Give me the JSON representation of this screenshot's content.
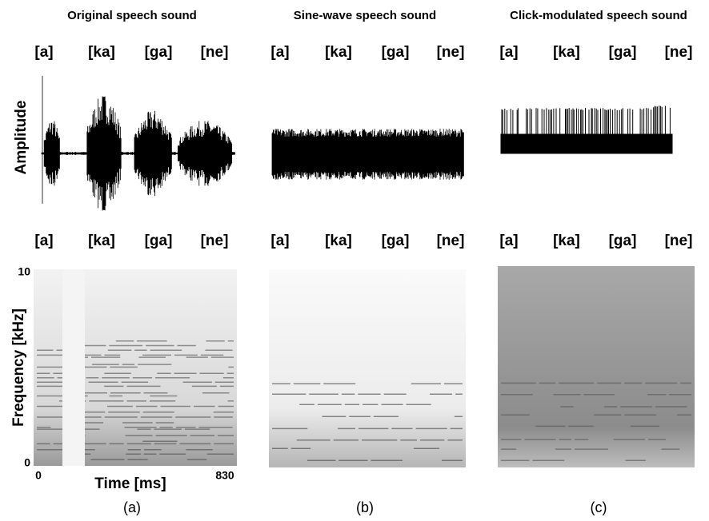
{
  "panels": [
    {
      "title": "Original speech sound",
      "waveform_labels": [
        "[a]",
        "[ka]",
        "[ga]",
        "[ne]"
      ],
      "spectrogram_labels": [
        "[a]",
        "[ka]",
        "[ga]",
        "[ne]"
      ],
      "caption": "(a)"
    },
    {
      "title": "Sine-wave speech sound",
      "waveform_labels": [
        "[a]",
        "[ka]",
        "[ga]",
        "[ne]"
      ],
      "spectrogram_labels": [
        "[a]",
        "[ka]",
        "[ga]",
        "[ne]"
      ],
      "caption": "(b)"
    },
    {
      "title": "Click-modulated speech sound",
      "waveform_labels": [
        "[a]",
        "[ka]",
        "[ga]",
        "[ne]"
      ],
      "spectrogram_labels": [
        "[a]",
        "[ka]",
        "[ga]",
        "[ne]"
      ],
      "caption": "(c)"
    }
  ],
  "axes": {
    "amplitude_label": "Amplitude",
    "frequency_label": "Frequency [kHz]",
    "time_label": "Time [ms]",
    "frequency_ticks": [
      10,
      0
    ],
    "time_ticks": [
      0,
      830
    ]
  }
}
